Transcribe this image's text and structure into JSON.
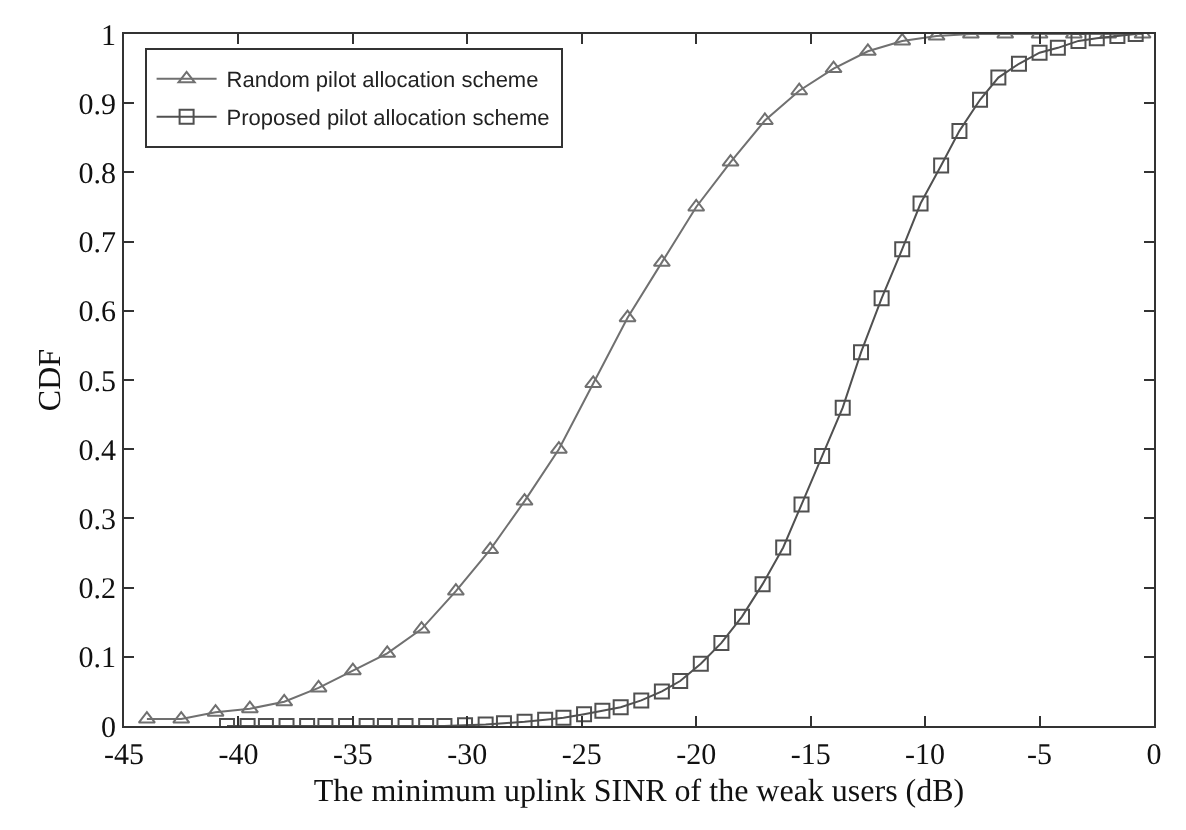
{
  "chart_data": {
    "type": "line",
    "xlabel": "The minimum uplink SINR of the weak users (dB)",
    "ylabel": "CDF",
    "xlim": [
      -45,
      0
    ],
    "xticks": [
      -45,
      -40,
      -35,
      -30,
      -25,
      -20,
      -15,
      -10,
      -5,
      0
    ],
    "ylim": [
      0,
      1
    ],
    "yticks": [
      0,
      0.1,
      0.2,
      0.3,
      0.4,
      0.5,
      0.6,
      0.7,
      0.8,
      0.9,
      1
    ],
    "grid": false,
    "legend": "top left",
    "line_style": "solid",
    "series": [
      {
        "name": "Random pilot allocation scheme",
        "color": "#707070",
        "marker": "triangle",
        "x": [
          -44,
          -42.5,
          -41,
          -39.5,
          -38,
          -36.5,
          -35,
          -33.5,
          -32,
          -30.5,
          -29,
          -27.5,
          -26,
          -24.5,
          -23,
          -21.5,
          -20,
          -18.5,
          -17,
          -15.5,
          -14,
          -12.5,
          -11,
          -9.5,
          -8,
          -6.5,
          -5,
          -3.5,
          -2,
          -0.5
        ],
        "values": [
          0.01,
          0.01,
          0.02,
          0.025,
          0.035,
          0.055,
          0.08,
          0.105,
          0.14,
          0.195,
          0.255,
          0.325,
          0.4,
          0.495,
          0.59,
          0.67,
          0.75,
          0.815,
          0.875,
          0.918,
          0.95,
          0.975,
          0.99,
          0.997,
          1,
          1,
          1,
          1,
          1,
          1
        ]
      },
      {
        "name": "Proposed pilot allocation scheme",
        "color": "#505050",
        "marker": "square",
        "x": [
          -40.5,
          -39.6,
          -38.8,
          -37.9,
          -37.0,
          -36.2,
          -35.3,
          -34.4,
          -33.6,
          -32.7,
          -31.8,
          -31.0,
          -30.1,
          -29.2,
          -28.4,
          -27.5,
          -26.6,
          -25.8,
          -24.9,
          -24.1,
          -23.3,
          -22.4,
          -21.5,
          -20.7,
          -19.8,
          -18.9,
          -18.0,
          -17.1,
          -16.2,
          -15.4,
          -14.5,
          -13.6,
          -12.8,
          -11.9,
          -11.0,
          -10.2,
          -9.3,
          -8.5,
          -7.6,
          -6.8,
          -5.9,
          -5.0,
          -4.2,
          -3.3,
          -2.5,
          -1.6,
          -0.8
        ],
        "values": [
          0,
          0,
          0,
          0,
          0,
          0,
          0,
          0,
          0,
          0,
          0,
          0,
          0.001,
          0.002,
          0.004,
          0.006,
          0.009,
          0.012,
          0.017,
          0.022,
          0.027,
          0.037,
          0.05,
          0.065,
          0.09,
          0.12,
          0.158,
          0.205,
          0.258,
          0.32,
          0.39,
          0.46,
          0.54,
          0.618,
          0.689,
          0.755,
          0.81,
          0.86,
          0.905,
          0.937,
          0.957,
          0.973,
          0.98,
          0.99,
          0.994,
          0.997,
          1
        ]
      }
    ]
  }
}
